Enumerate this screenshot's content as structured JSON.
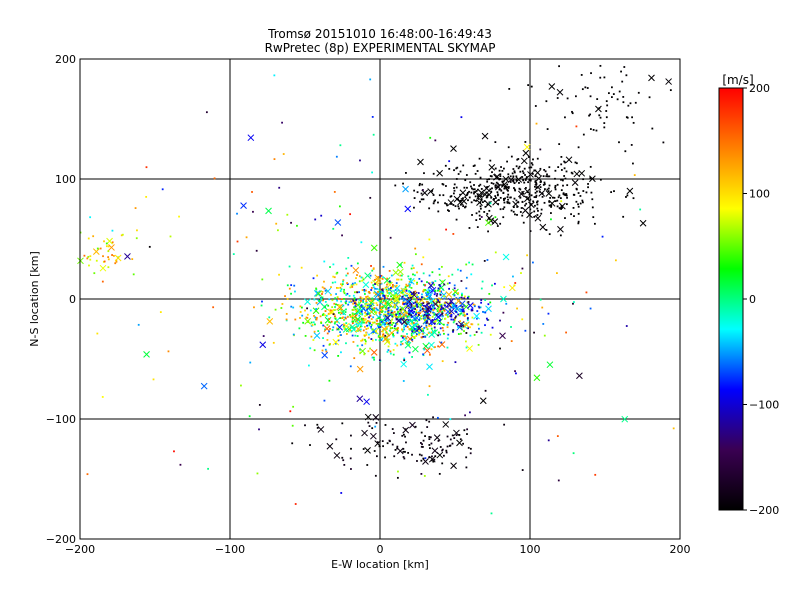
{
  "chart_data": {
    "type": "scatter",
    "title": "Tromsø 20151010 16:48:00-16:49:43",
    "subtitle": "RwPretec (8p) EXPERIMENTAL SKYMAP",
    "xlabel": "E-W location [km]",
    "ylabel": "N-S location [km]",
    "xlim": [
      -200,
      200
    ],
    "ylim": [
      -200,
      200
    ],
    "xticks": [
      -200,
      -100,
      0,
      100,
      200
    ],
    "yticks": [
      -200,
      -100,
      0,
      100,
      200
    ],
    "xtick_labels": [
      "−200",
      "−100",
      "0",
      "100",
      "200"
    ],
    "ytick_labels": [
      "−200",
      "−100",
      "0",
      "100",
      "200"
    ],
    "grid": true,
    "colorbar": {
      "label": "[m/s]",
      "range": [
        -200,
        200
      ],
      "ticks": [
        200,
        100,
        0,
        -100,
        -200
      ],
      "tick_labels": [
        "200",
        "100",
        "0",
        "−100",
        "−200"
      ],
      "colors": [
        "#000000",
        "#3a0052",
        "#0000ff",
        "#00ffff",
        "#00ff00",
        "#ffff00",
        "#ff8000",
        "#ff0000"
      ]
    },
    "clusters": [
      {
        "cx": 5,
        "cy": -10,
        "sx": 28,
        "sy": 16,
        "n": 1200,
        "vmin": -80,
        "vmax": 160
      },
      {
        "cx": 35,
        "cy": -10,
        "sx": 20,
        "sy": 10,
        "n": 250,
        "vmin": -160,
        "vmax": -40
      },
      {
        "cx": 90,
        "cy": 90,
        "sx": 30,
        "sy": 14,
        "n": 500,
        "vmin": -205,
        "vmax": -195
      },
      {
        "cx": 20,
        "cy": -120,
        "sx": 28,
        "sy": 14,
        "n": 130,
        "vmin": -205,
        "vmax": -180
      },
      {
        "cx": -185,
        "cy": 40,
        "sx": 10,
        "sy": 12,
        "n": 45,
        "vmin": 40,
        "vmax": 160
      },
      {
        "cx": 150,
        "cy": 165,
        "sx": 28,
        "sy": 20,
        "n": 80,
        "vmin": -205,
        "vmax": -195
      },
      {
        "cx": 0,
        "cy": 0,
        "sx": 110,
        "sy": 90,
        "n": 220,
        "vmin": -200,
        "vmax": 200
      }
    ],
    "marker_ratio": 0.12
  }
}
